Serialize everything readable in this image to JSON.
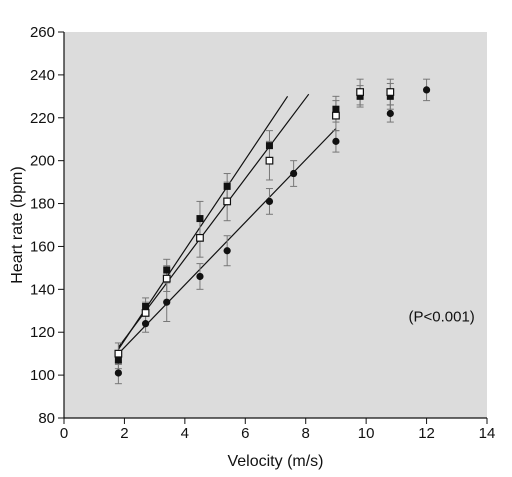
{
  "chart_data": {
    "type": "scatter",
    "xlabel": "Velocity (m/s)",
    "ylabel": "Heart rate (bpm)",
    "xlim": [
      0,
      14
    ],
    "ylim": [
      80,
      260
    ],
    "xticks": [
      0,
      2,
      4,
      6,
      8,
      10,
      12,
      14
    ],
    "yticks": [
      80,
      100,
      120,
      140,
      160,
      180,
      200,
      220,
      240,
      260
    ],
    "annotation": "(P<0.001)",
    "grid": false,
    "legend": "none",
    "plot_background": "#dcdcdc",
    "series": [
      {
        "marker": "filled-square",
        "color": "#111111",
        "points": [
          {
            "x": 1.8,
            "y": 107,
            "err": 4
          },
          {
            "x": 2.7,
            "y": 132,
            "err": 4
          },
          {
            "x": 3.4,
            "y": 149,
            "err": 5
          },
          {
            "x": 4.5,
            "y": 173,
            "err": 8
          },
          {
            "x": 5.4,
            "y": 188,
            "err": 6
          },
          {
            "x": 6.8,
            "y": 207,
            "err": 7
          },
          {
            "x": 9.0,
            "y": 224,
            "err": 6
          },
          {
            "x": 9.8,
            "y": 230,
            "err": 5
          },
          {
            "x": 10.8,
            "y": 230,
            "err": 6
          }
        ],
        "fit": {
          "x": [
            1.8,
            7.4
          ],
          "y": [
            112,
            230
          ]
        }
      },
      {
        "marker": "open-square",
        "color": "#111111",
        "points": [
          {
            "x": 1.8,
            "y": 110,
            "err": 5
          },
          {
            "x": 2.7,
            "y": 129,
            "err": 5
          },
          {
            "x": 3.4,
            "y": 145,
            "err": 6
          },
          {
            "x": 4.5,
            "y": 164,
            "err": 9
          },
          {
            "x": 5.4,
            "y": 181,
            "err": 9
          },
          {
            "x": 6.8,
            "y": 200,
            "err": 9
          },
          {
            "x": 9.0,
            "y": 221,
            "err": 7
          },
          {
            "x": 9.8,
            "y": 232,
            "err": 6
          },
          {
            "x": 10.8,
            "y": 232,
            "err": 6
          }
        ],
        "fit": {
          "x": [
            1.8,
            8.1
          ],
          "y": [
            113,
            231
          ]
        }
      },
      {
        "marker": "filled-circle",
        "color": "#111111",
        "points": [
          {
            "x": 1.8,
            "y": 101,
            "err": 5
          },
          {
            "x": 2.7,
            "y": 124,
            "err": 4
          },
          {
            "x": 3.4,
            "y": 134,
            "err": 9
          },
          {
            "x": 4.5,
            "y": 146,
            "err": 6
          },
          {
            "x": 5.4,
            "y": 158,
            "err": 7
          },
          {
            "x": 6.8,
            "y": 181,
            "err": 6
          },
          {
            "x": 7.6,
            "y": 194,
            "err": 6
          },
          {
            "x": 9.0,
            "y": 209,
            "err": 5
          },
          {
            "x": 10.8,
            "y": 222,
            "err": 4
          },
          {
            "x": 12.0,
            "y": 233,
            "err": 5
          }
        ],
        "fit": {
          "x": [
            1.8,
            9.0
          ],
          "y": [
            110,
            215
          ]
        }
      }
    ]
  }
}
